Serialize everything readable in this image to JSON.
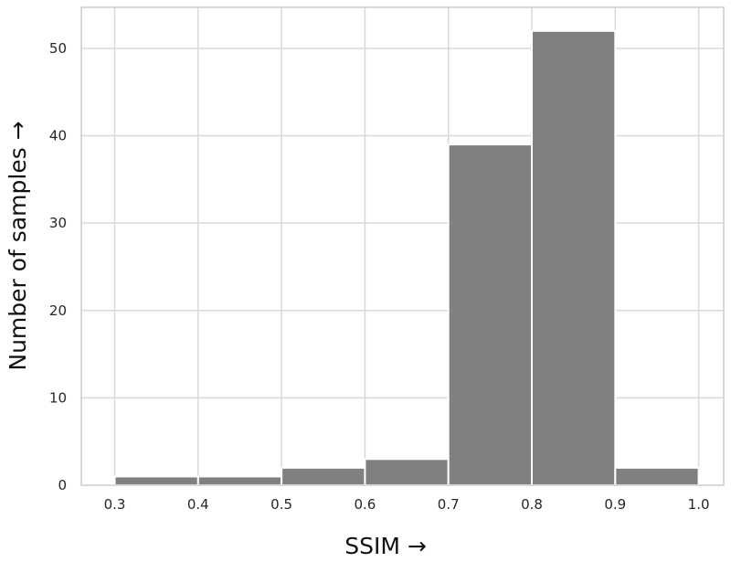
{
  "chart_data": {
    "type": "bar",
    "subtype": "histogram",
    "title": "",
    "xlabel": "SSIM →",
    "ylabel": "Number of samples →",
    "bins": [
      {
        "start": 0.3,
        "end": 0.4,
        "value": 1
      },
      {
        "start": 0.4,
        "end": 0.5,
        "value": 1
      },
      {
        "start": 0.5,
        "end": 0.6,
        "value": 2
      },
      {
        "start": 0.6,
        "end": 0.7,
        "value": 3
      },
      {
        "start": 0.7,
        "end": 0.8,
        "value": 39
      },
      {
        "start": 0.8,
        "end": 0.9,
        "value": 52
      },
      {
        "start": 0.9,
        "end": 1.0,
        "value": 2
      }
    ],
    "xticks": [
      "0.3",
      "0.4",
      "0.5",
      "0.6",
      "0.7",
      "0.8",
      "0.9",
      "1.0"
    ],
    "yticks": [
      "0",
      "10",
      "20",
      "30",
      "40",
      "50"
    ],
    "xlim": [
      0.26,
      1.03
    ],
    "ylim": [
      0,
      54.7
    ],
    "grid": true,
    "bar_color": "#808080",
    "bar_edge_color": "#ffffff",
    "grid_color": "#d9d9d9",
    "frame_color": "#cccccc"
  }
}
